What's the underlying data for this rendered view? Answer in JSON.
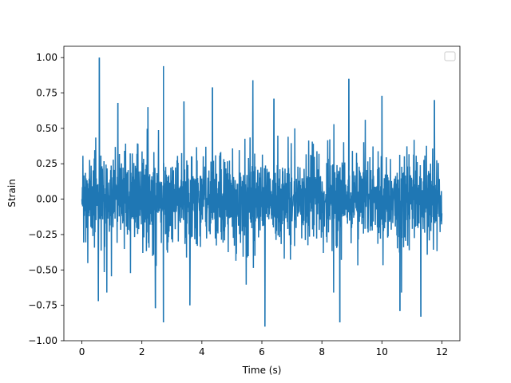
{
  "chart_data": {
    "type": "line",
    "title": "",
    "xlabel": "Time (s)",
    "ylabel": "Strain",
    "xlim": [
      -0.6,
      12.6
    ],
    "ylim": [
      -1.0,
      1.08
    ],
    "x_ticks": [
      0,
      2,
      4,
      6,
      8,
      10,
      12
    ],
    "x_tick_labels": [
      "0",
      "2",
      "4",
      "6",
      "8",
      "10",
      "12"
    ],
    "y_ticks": [
      -1.0,
      -0.75,
      -0.5,
      -0.25,
      0.0,
      0.25,
      0.5,
      0.75,
      1.0
    ],
    "y_tick_labels": [
      "−1.00",
      "−0.75",
      "−0.50",
      "−0.25",
      "0.00",
      "0.25",
      "0.50",
      "0.75",
      "1.00"
    ],
    "x_range": [
      0,
      12
    ],
    "legend": {
      "placement": "top-right",
      "entries": []
    },
    "grid": false,
    "series_color": "#1f77b4",
    "series": [
      {
        "name": "",
        "envelope": "dense noise, roughly ±0.5",
        "peaks": [
          {
            "x": 0.58,
            "y": 1.0
          },
          {
            "x": 2.72,
            "y": 0.94
          },
          {
            "x": 1.2,
            "y": 0.68
          },
          {
            "x": 2.2,
            "y": 0.65
          },
          {
            "x": 3.4,
            "y": 0.69
          },
          {
            "x": 4.35,
            "y": 0.79
          },
          {
            "x": 5.7,
            "y": 0.84
          },
          {
            "x": 6.4,
            "y": 0.71
          },
          {
            "x": 8.9,
            "y": 0.85
          },
          {
            "x": 10.0,
            "y": 0.73
          },
          {
            "x": 11.75,
            "y": 0.7
          }
        ],
        "troughs": [
          {
            "x": 0.55,
            "y": -0.72
          },
          {
            "x": 2.72,
            "y": -0.87
          },
          {
            "x": 2.45,
            "y": -0.77
          },
          {
            "x": 3.6,
            "y": -0.75
          },
          {
            "x": 6.1,
            "y": -0.9
          },
          {
            "x": 8.6,
            "y": -0.87
          },
          {
            "x": 10.6,
            "y": -0.79
          },
          {
            "x": 11.3,
            "y": -0.83
          }
        ]
      }
    ]
  }
}
